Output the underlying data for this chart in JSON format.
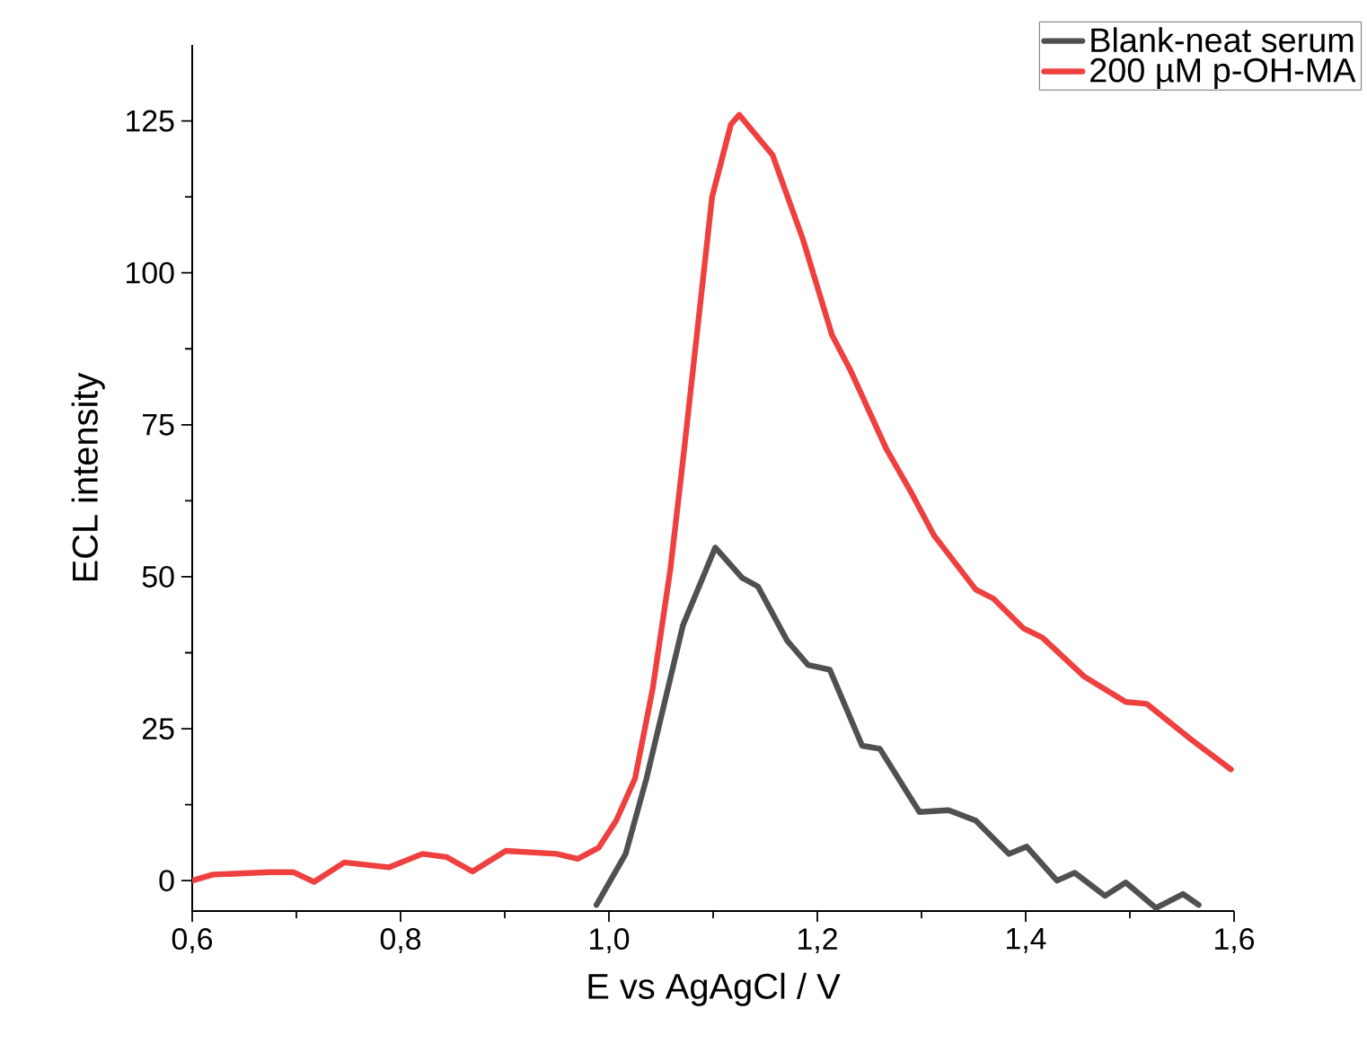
{
  "chart_data": {
    "type": "line",
    "xlabel": "E vs AgAgCl / V",
    "ylabel": "ECL intensity",
    "xlim": [
      0.6,
      1.6
    ],
    "ylim": [
      -5,
      137.5
    ],
    "xticks": [
      {
        "value": 0.6,
        "label": "0,6"
      },
      {
        "value": 0.8,
        "label": "0,8"
      },
      {
        "value": 1.0,
        "label": "1,0"
      },
      {
        "value": 1.2,
        "label": "1,2"
      },
      {
        "value": 1.4,
        "label": "1,4"
      },
      {
        "value": 1.6,
        "label": "1,6"
      }
    ],
    "yticks": [
      0,
      25,
      50,
      75,
      100,
      125
    ],
    "grid": false,
    "legend": "top right",
    "marker": "none",
    "line_style": "solid",
    "series": [
      {
        "name": "Blank-neat serum",
        "color": "#505050",
        "x": [
          0.988,
          1.016,
          1.036,
          1.071,
          1.102,
          1.128,
          1.143,
          1.171,
          1.191,
          1.212,
          1.243,
          1.26,
          1.298,
          1.326,
          1.352,
          1.384,
          1.401,
          1.43,
          1.447,
          1.476,
          1.496,
          1.525,
          1.551,
          1.566
        ],
        "values": [
          -4,
          4.4,
          16.8,
          42,
          54.8,
          49.8,
          48.4,
          39.5,
          35.5,
          34.7,
          22.2,
          21.7,
          11.3,
          11.6,
          9.9,
          4.4,
          5.6,
          0,
          1.3,
          -2.5,
          -0.3,
          -4.5,
          -2.2,
          -4
        ]
      },
      {
        "name": "200 µM p-OH-MA",
        "color": "#ef4040",
        "x": [
          0.6,
          0.62,
          0.674,
          0.697,
          0.717,
          0.746,
          0.789,
          0.821,
          0.844,
          0.869,
          0.901,
          0.95,
          0.97,
          0.99,
          1.007,
          1.025,
          1.042,
          1.059,
          1.071,
          1.099,
          1.117,
          1.125,
          1.157,
          1.186,
          1.214,
          1.232,
          1.266,
          1.289,
          1.312,
          1.352,
          1.369,
          1.398,
          1.416,
          1.456,
          1.496,
          1.516,
          1.559,
          1.597
        ],
        "values": [
          0,
          1.0,
          1.4,
          1.4,
          -0.2,
          3.0,
          2.2,
          4.4,
          3.9,
          1.5,
          4.9,
          4.4,
          3.6,
          5.4,
          9.9,
          16.8,
          31.6,
          51.3,
          69.1,
          112.5,
          124.4,
          126,
          119.4,
          105.6,
          89.8,
          83.9,
          71.1,
          64.2,
          56.8,
          47.9,
          46.4,
          41.5,
          40.0,
          33.6,
          29.4,
          29.1,
          23.2,
          18.3
        ]
      }
    ]
  }
}
